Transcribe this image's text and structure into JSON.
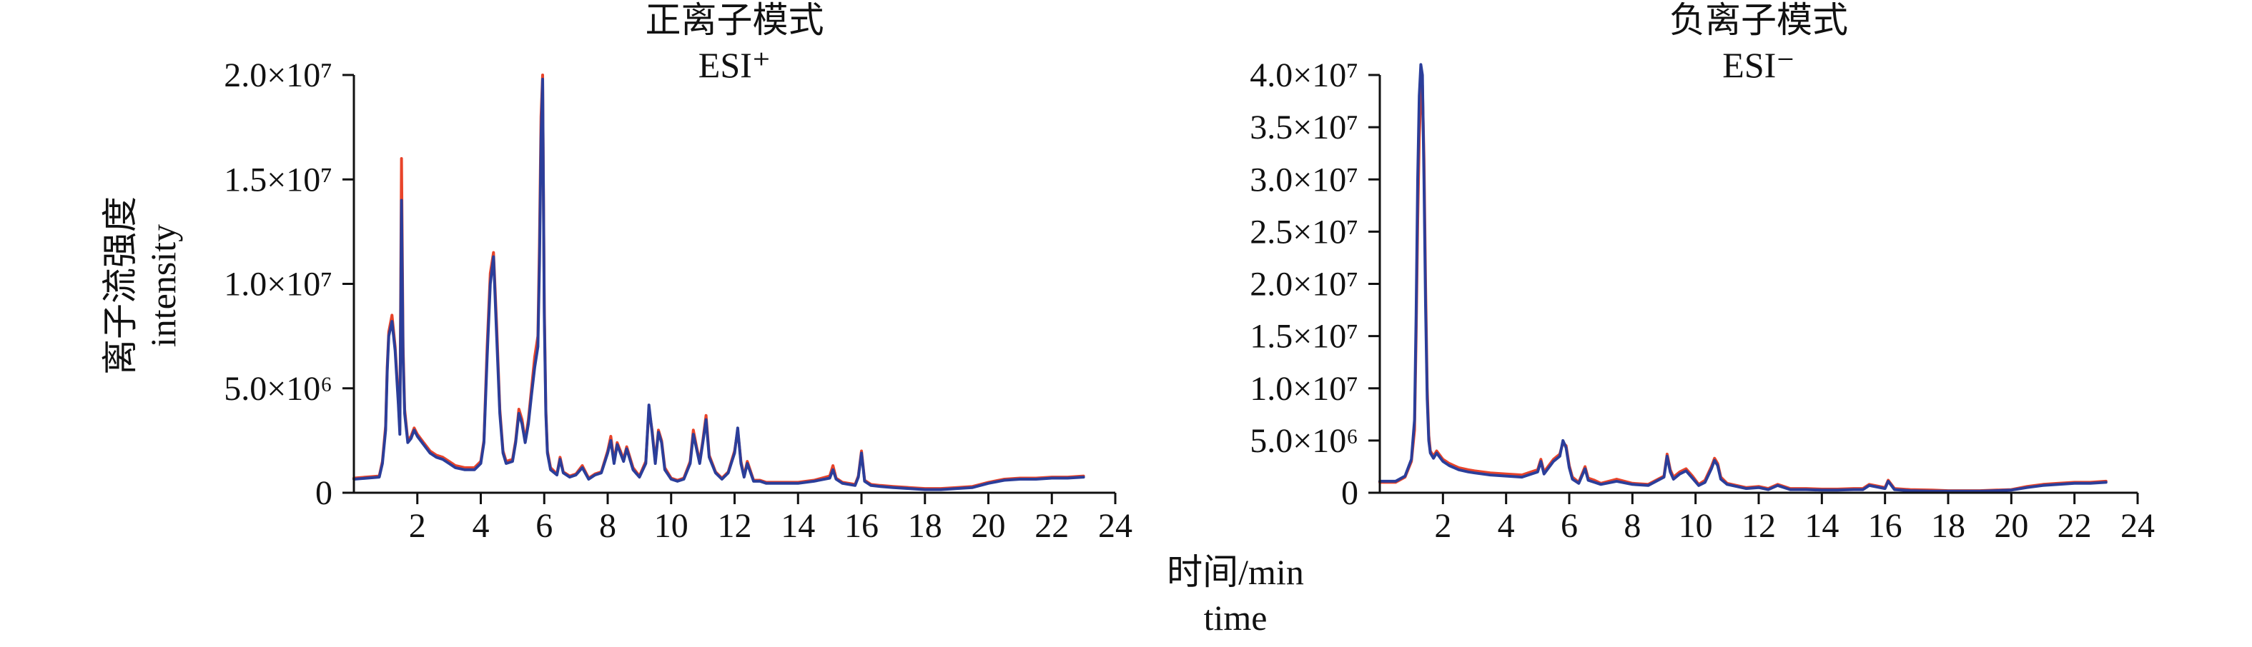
{
  "figure": {
    "xlabel": "时间/min",
    "xlabel_en": "time",
    "ylabel": "离子流强度",
    "ylabel_en": "intensity"
  },
  "colors": {
    "replicate_a": "#e8442a",
    "replicate_b": "#2b3e9a"
  },
  "chart_data": [
    {
      "type": "line",
      "title": "正离子模式",
      "subtitle": "ESI⁺",
      "xlim": [
        0,
        24
      ],
      "ylim": [
        0,
        20000000
      ],
      "x_ticks": [
        {
          "value": 2,
          "label": "2"
        },
        {
          "value": 4,
          "label": "4"
        },
        {
          "value": 6,
          "label": "6"
        },
        {
          "value": 8,
          "label": "8"
        },
        {
          "value": 10,
          "label": "10"
        },
        {
          "value": 12,
          "label": "12"
        },
        {
          "value": 14,
          "label": "14"
        },
        {
          "value": 16,
          "label": "16"
        },
        {
          "value": 18,
          "label": "18"
        },
        {
          "value": 20,
          "label": "20"
        },
        {
          "value": 22,
          "label": "22"
        },
        {
          "value": 24,
          "label": "24"
        }
      ],
      "y_ticks": [
        {
          "value": 0,
          "label": "0"
        },
        {
          "value": 5000000,
          "label": "5.0×10⁶"
        },
        {
          "value": 10000000,
          "label": "1.0×10⁷"
        },
        {
          "value": 15000000,
          "label": "1.5×10⁷"
        },
        {
          "value": 20000000,
          "label": "2.0×10⁷"
        }
      ],
      "series": [
        {
          "color": "#e8442a",
          "x": [
            0,
            0.8,
            0.9,
            1.0,
            1.05,
            1.1,
            1.2,
            1.3,
            1.4,
            1.45,
            1.5,
            1.55,
            1.6,
            1.7,
            1.8,
            1.9,
            2.0,
            2.2,
            2.4,
            2.6,
            2.8,
            3.0,
            3.2,
            3.5,
            3.8,
            4.0,
            4.1,
            4.2,
            4.3,
            4.4,
            4.5,
            4.6,
            4.7,
            4.8,
            5.0,
            5.1,
            5.2,
            5.3,
            5.4,
            5.5,
            5.6,
            5.7,
            5.8,
            5.85,
            5.9,
            5.95,
            6.0,
            6.05,
            6.1,
            6.2,
            6.4,
            6.5,
            6.6,
            6.8,
            7.0,
            7.2,
            7.4,
            7.6,
            7.8,
            8.0,
            8.1,
            8.2,
            8.3,
            8.4,
            8.5,
            8.6,
            8.8,
            9.0,
            9.2,
            9.3,
            9.4,
            9.5,
            9.6,
            9.7,
            9.8,
            10.0,
            10.2,
            10.4,
            10.6,
            10.7,
            10.8,
            10.9,
            11.0,
            11.1,
            11.2,
            11.4,
            11.6,
            11.8,
            12.0,
            12.1,
            12.2,
            12.3,
            12.4,
            12.6,
            12.8,
            13.0,
            13.5,
            14.0,
            14.5,
            15.0,
            15.1,
            15.2,
            15.4,
            15.8,
            15.9,
            16.0,
            16.1,
            16.3,
            16.6,
            17.0,
            17.5,
            18.0,
            18.5,
            19.0,
            19.5,
            20.0,
            20.5,
            21.0,
            21.5,
            22.0,
            22.5,
            23.0
          ],
          "values": [
            700000,
            800000,
            1500000,
            3200000,
            6000000,
            7700000,
            8500000,
            7000000,
            4500000,
            3000000,
            16000000,
            7000000,
            4000000,
            2500000,
            2700000,
            3100000,
            2800000,
            2400000,
            2000000,
            1800000,
            1700000,
            1500000,
            1300000,
            1200000,
            1200000,
            1500000,
            2500000,
            7000000,
            10500000,
            11500000,
            8000000,
            4000000,
            2000000,
            1500000,
            1600000,
            2500000,
            4000000,
            3500000,
            2500000,
            3500000,
            5000000,
            6500000,
            7500000,
            12000000,
            18000000,
            20000000,
            9000000,
            4000000,
            2000000,
            1200000,
            900000,
            1700000,
            1000000,
            800000,
            900000,
            1300000,
            700000,
            900000,
            1000000,
            2000000,
            2700000,
            1500000,
            2400000,
            2000000,
            1600000,
            2200000,
            1200000,
            800000,
            1500000,
            4000000,
            3000000,
            1500000,
            3000000,
            2500000,
            1200000,
            700000,
            600000,
            700000,
            1500000,
            3000000,
            2200000,
            1500000,
            2500000,
            3700000,
            1800000,
            1000000,
            700000,
            1000000,
            2000000,
            3000000,
            1500000,
            800000,
            1500000,
            600000,
            600000,
            500000,
            500000,
            500000,
            600000,
            800000,
            1300000,
            700000,
            500000,
            400000,
            800000,
            2000000,
            600000,
            400000,
            350000,
            300000,
            250000,
            200000,
            200000,
            250000,
            300000,
            500000,
            650000,
            700000,
            700000,
            750000,
            750000,
            800000
          ]
        },
        {
          "color": "#2b3e9a",
          "x": [
            0,
            0.8,
            0.9,
            1.0,
            1.05,
            1.1,
            1.2,
            1.3,
            1.4,
            1.45,
            1.5,
            1.55,
            1.6,
            1.7,
            1.8,
            1.9,
            2.0,
            2.2,
            2.4,
            2.6,
            2.8,
            3.0,
            3.2,
            3.5,
            3.8,
            4.0,
            4.1,
            4.2,
            4.3,
            4.4,
            4.5,
            4.6,
            4.7,
            4.8,
            5.0,
            5.1,
            5.2,
            5.3,
            5.4,
            5.5,
            5.6,
            5.7,
            5.8,
            5.85,
            5.9,
            5.95,
            6.0,
            6.05,
            6.1,
            6.2,
            6.4,
            6.5,
            6.6,
            6.8,
            7.0,
            7.2,
            7.4,
            7.6,
            7.8,
            8.0,
            8.1,
            8.2,
            8.3,
            8.4,
            8.5,
            8.6,
            8.8,
            9.0,
            9.2,
            9.3,
            9.4,
            9.5,
            9.6,
            9.7,
            9.8,
            10.0,
            10.2,
            10.4,
            10.6,
            10.7,
            10.8,
            10.9,
            11.0,
            11.1,
            11.2,
            11.4,
            11.6,
            11.8,
            12.0,
            12.1,
            12.2,
            12.3,
            12.4,
            12.6,
            12.8,
            13.0,
            13.5,
            14.0,
            14.5,
            15.0,
            15.1,
            15.2,
            15.4,
            15.8,
            15.9,
            16.0,
            16.1,
            16.3,
            16.6,
            17.0,
            17.5,
            18.0,
            18.5,
            19.0,
            19.5,
            20.0,
            20.5,
            21.0,
            21.5,
            22.0,
            22.5,
            23.0
          ],
          "values": [
            650000,
            750000,
            1400000,
            3000000,
            5800000,
            7500000,
            8200000,
            6800000,
            4300000,
            2800000,
            14000000,
            6500000,
            3800000,
            2400000,
            2600000,
            3000000,
            2700000,
            2300000,
            1900000,
            1700000,
            1600000,
            1400000,
            1200000,
            1100000,
            1100000,
            1400000,
            2400000,
            6500000,
            10000000,
            11300000,
            7500000,
            3800000,
            1900000,
            1400000,
            1500000,
            2400000,
            3800000,
            3300000,
            2400000,
            3300000,
            4700000,
            6000000,
            7000000,
            11000000,
            17000000,
            19800000,
            8500000,
            3800000,
            1900000,
            1100000,
            850000,
            1600000,
            950000,
            750000,
            850000,
            1200000,
            650000,
            850000,
            950000,
            1900000,
            2500000,
            1400000,
            2300000,
            1900000,
            1500000,
            2100000,
            1100000,
            750000,
            1400000,
            4200000,
            2900000,
            1400000,
            2900000,
            2400000,
            1100000,
            650000,
            550000,
            650000,
            1400000,
            2800000,
            2100000,
            1400000,
            2400000,
            3500000,
            1700000,
            950000,
            650000,
            950000,
            1900000,
            3100000,
            1400000,
            750000,
            1400000,
            550000,
            550000,
            450000,
            450000,
            450000,
            550000,
            700000,
            1100000,
            650000,
            450000,
            350000,
            750000,
            1900000,
            550000,
            350000,
            300000,
            250000,
            200000,
            150000,
            150000,
            200000,
            250000,
            450000,
            600000,
            650000,
            650000,
            700000,
            700000,
            750000
          ]
        }
      ]
    },
    {
      "type": "line",
      "title": "负离子模式",
      "subtitle": "ESI⁻",
      "xlim": [
        0,
        24
      ],
      "ylim": [
        0,
        40000000
      ],
      "x_ticks": [
        {
          "value": 2,
          "label": "2"
        },
        {
          "value": 4,
          "label": "4"
        },
        {
          "value": 6,
          "label": "6"
        },
        {
          "value": 8,
          "label": "8"
        },
        {
          "value": 10,
          "label": "10"
        },
        {
          "value": 12,
          "label": "12"
        },
        {
          "value": 14,
          "label": "14"
        },
        {
          "value": 16,
          "label": "16"
        },
        {
          "value": 18,
          "label": "18"
        },
        {
          "value": 20,
          "label": "20"
        },
        {
          "value": 22,
          "label": "22"
        },
        {
          "value": 24,
          "label": "24"
        }
      ],
      "y_ticks": [
        {
          "value": 0,
          "label": "0"
        },
        {
          "value": 5000000,
          "label": "5.0×10⁶"
        },
        {
          "value": 10000000,
          "label": "1.0×10⁷"
        },
        {
          "value": 15000000,
          "label": "1.5×10⁷"
        },
        {
          "value": 20000000,
          "label": "2.0×10⁷"
        },
        {
          "value": 25000000,
          "label": "2.5×10⁷"
        },
        {
          "value": 30000000,
          "label": "3.0×10⁷"
        },
        {
          "value": 35000000,
          "label": "3.5×10⁷"
        },
        {
          "value": 40000000,
          "label": "4.0×10⁷"
        }
      ],
      "series": [
        {
          "color": "#e8442a",
          "x": [
            0,
            0.5,
            0.8,
            1.0,
            1.1,
            1.15,
            1.2,
            1.25,
            1.3,
            1.35,
            1.4,
            1.45,
            1.5,
            1.55,
            1.6,
            1.7,
            1.8,
            2.0,
            2.2,
            2.5,
            2.8,
            3.0,
            3.5,
            4.0,
            4.5,
            5.0,
            5.1,
            5.2,
            5.3,
            5.5,
            5.7,
            5.8,
            5.9,
            6.0,
            6.1,
            6.3,
            6.5,
            6.6,
            6.8,
            7.0,
            7.5,
            8.0,
            8.5,
            9.0,
            9.1,
            9.2,
            9.3,
            9.5,
            9.7,
            9.9,
            10.1,
            10.3,
            10.5,
            10.6,
            10.7,
            10.8,
            11.0,
            11.3,
            11.6,
            12.0,
            12.3,
            12.6,
            13.0,
            13.5,
            14.0,
            14.5,
            15.0,
            15.3,
            15.5,
            16.0,
            16.1,
            16.3,
            16.8,
            17.5,
            18.0,
            18.5,
            19.0,
            19.5,
            20.0,
            20.5,
            21.0,
            21.5,
            22.0,
            22.5,
            23.0
          ],
          "values": [
            1000000,
            1000000,
            1500000,
            3000000,
            6000000,
            15000000,
            26000000,
            34000000,
            38000000,
            39000000,
            32000000,
            20000000,
            10000000,
            5500000,
            4000000,
            3500000,
            4000000,
            3200000,
            2800000,
            2400000,
            2200000,
            2100000,
            1900000,
            1800000,
            1700000,
            2200000,
            3200000,
            2000000,
            2400000,
            3200000,
            3700000,
            4800000,
            4500000,
            2600000,
            1500000,
            1000000,
            2500000,
            1400000,
            1200000,
            900000,
            1300000,
            900000,
            800000,
            1600000,
            3700000,
            2200000,
            1500000,
            2000000,
            2300000,
            1600000,
            800000,
            1200000,
            2500000,
            3300000,
            2800000,
            1500000,
            900000,
            700000,
            500000,
            600000,
            400000,
            800000,
            400000,
            400000,
            350000,
            350000,
            400000,
            400000,
            800000,
            500000,
            1200000,
            400000,
            300000,
            250000,
            200000,
            200000,
            200000,
            250000,
            300000,
            600000,
            800000,
            900000,
            1000000,
            1000000,
            1100000
          ]
        },
        {
          "color": "#2b3e9a",
          "x": [
            0,
            0.5,
            0.8,
            1.0,
            1.1,
            1.15,
            1.2,
            1.25,
            1.3,
            1.35,
            1.4,
            1.45,
            1.5,
            1.55,
            1.6,
            1.7,
            1.8,
            2.0,
            2.2,
            2.5,
            2.8,
            3.0,
            3.5,
            4.0,
            4.5,
            5.0,
            5.1,
            5.2,
            5.3,
            5.5,
            5.7,
            5.8,
            5.9,
            6.0,
            6.1,
            6.3,
            6.5,
            6.6,
            6.8,
            7.0,
            7.5,
            8.0,
            8.5,
            9.0,
            9.1,
            9.2,
            9.3,
            9.5,
            9.7,
            9.9,
            10.1,
            10.3,
            10.5,
            10.6,
            10.7,
            10.8,
            11.0,
            11.3,
            11.6,
            12.0,
            12.3,
            12.6,
            13.0,
            13.5,
            14.0,
            14.5,
            15.0,
            15.3,
            15.5,
            16.0,
            16.1,
            16.3,
            16.8,
            17.5,
            18.0,
            18.5,
            19.0,
            19.5,
            20.0,
            20.5,
            21.0,
            21.5,
            22.0,
            22.5,
            23.0
          ],
          "values": [
            1100000,
            1100000,
            1600000,
            3200000,
            7000000,
            17000000,
            30000000,
            38000000,
            41000000,
            40000000,
            30000000,
            18000000,
            9000000,
            5000000,
            3800000,
            3300000,
            3800000,
            3000000,
            2600000,
            2200000,
            2000000,
            1900000,
            1700000,
            1600000,
            1500000,
            2000000,
            3000000,
            1800000,
            2200000,
            3000000,
            3500000,
            5000000,
            4300000,
            2400000,
            1300000,
            900000,
            2300000,
            1200000,
            1000000,
            800000,
            1100000,
            800000,
            700000,
            1500000,
            3500000,
            2000000,
            1300000,
            1800000,
            2100000,
            1400000,
            700000,
            1000000,
            2300000,
            3100000,
            2600000,
            1300000,
            800000,
            600000,
            400000,
            500000,
            300000,
            700000,
            300000,
            300000,
            250000,
            250000,
            300000,
            300000,
            700000,
            400000,
            1100000,
            300000,
            200000,
            150000,
            150000,
            150000,
            150000,
            200000,
            250000,
            500000,
            700000,
            800000,
            900000,
            900000,
            1000000
          ]
        }
      ]
    }
  ]
}
